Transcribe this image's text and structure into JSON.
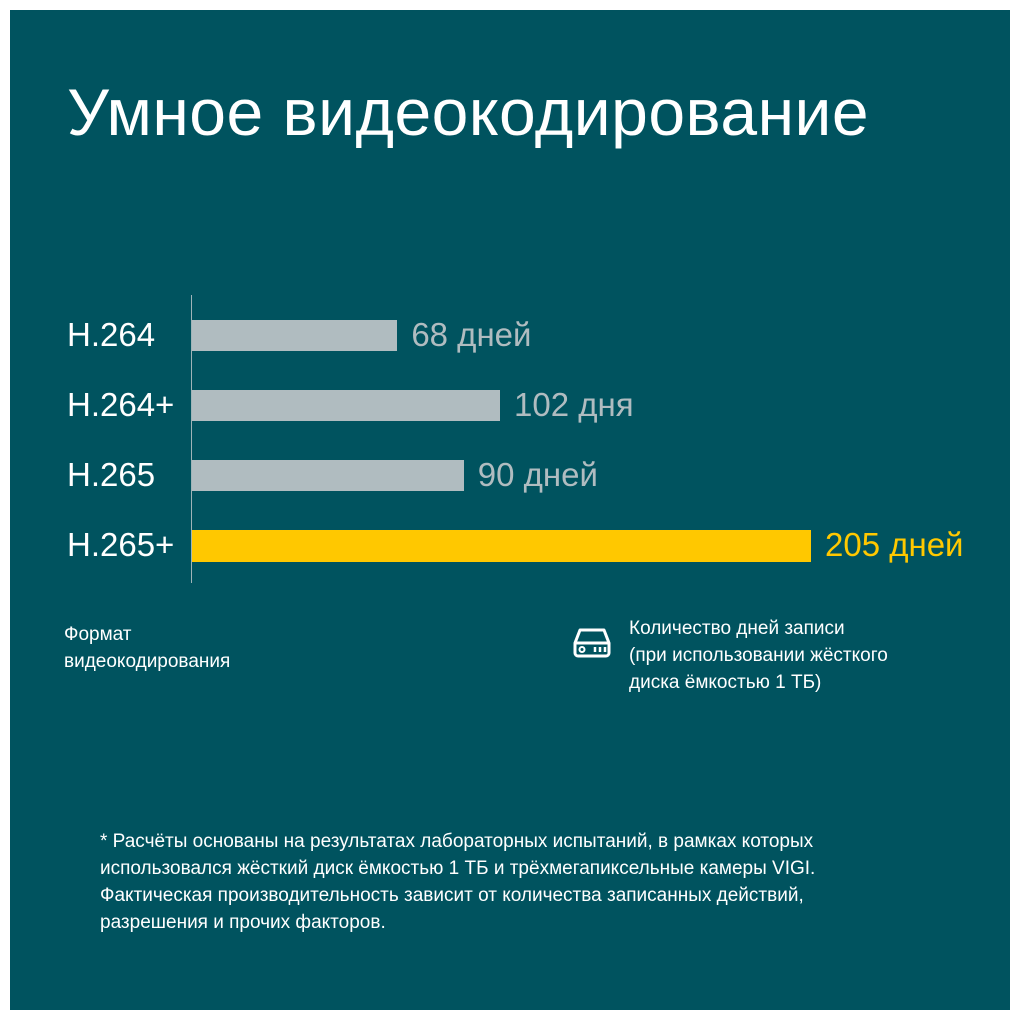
{
  "chart_data": {
    "type": "bar",
    "orientation": "horizontal",
    "title": "Умное видеокодирование",
    "categories": [
      "H.264",
      "H.264+",
      "H.265",
      "H.265+"
    ],
    "values": [
      68,
      102,
      90,
      205
    ],
    "value_labels": [
      "68 дней",
      "102 дня",
      "90 дней",
      "205 дней"
    ],
    "xlim": [
      0,
      205
    ],
    "grid": false,
    "highlight_index": 3,
    "colors": {
      "default": "#b0bcc0",
      "highlight": "#ffc800",
      "background": "#00535f"
    },
    "ylabel": "Формат видеокодирования",
    "xlabel": "Количество дней записи (при использовании жёсткого диска ёмкостью 1 ТБ)",
    "legend_icon": "hard-drive-icon"
  },
  "ylabel_lines": [
    "Формат",
    "видеокодирования"
  ],
  "xlabel_lines": [
    "Количество дней записи",
    "(при использовании жёсткого",
    "диска ёмкостью 1 ТБ)"
  ],
  "footnote_lines": [
    "* Расчёты основаны на результатах лабораторных испытаний, в рамках которых",
    "использовался жёсткий диск ёмкостью 1 ТБ и трёхмегапиксельные камеры VIGI.",
    "Фактическая производительность зависит от количества записанных действий,",
    "разрешения и прочих факторов."
  ]
}
